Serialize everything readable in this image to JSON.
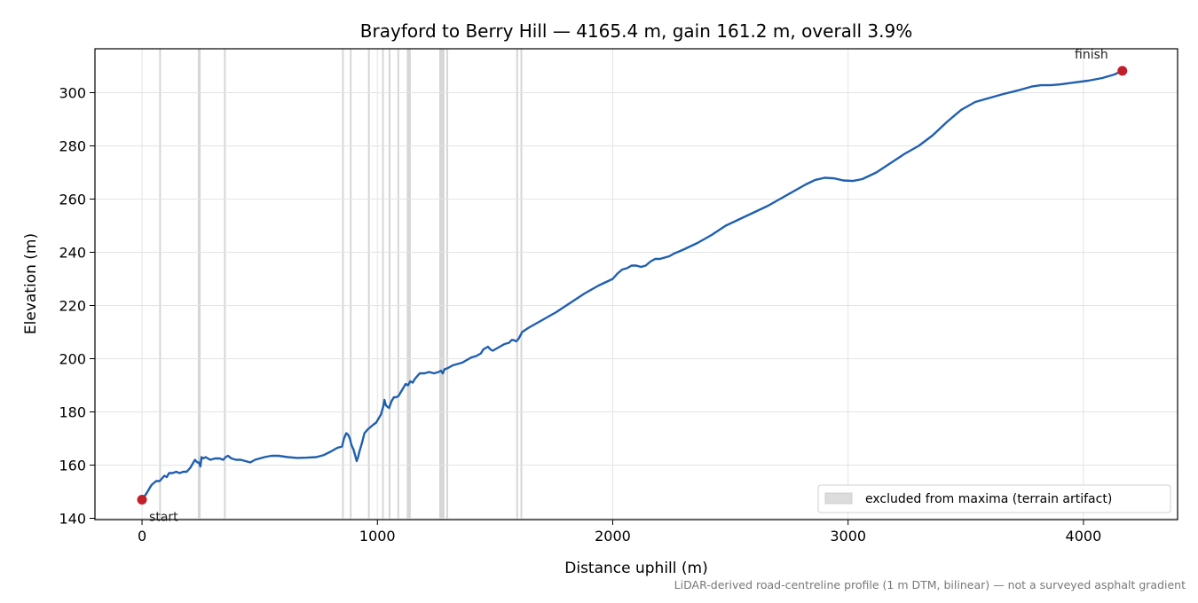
{
  "chart_data": {
    "type": "line",
    "title": "Brayford to Berry Hill — 4165.4 m, gain 161.2 m, overall 3.9%",
    "xlabel": "Distance uphill (m)",
    "ylabel": "Elevation (m)",
    "xlim": [
      -200,
      4400
    ],
    "ylim": [
      139.5,
      316.5
    ],
    "xticks": [
      0,
      1000,
      2000,
      3000,
      4000
    ],
    "yticks": [
      140,
      160,
      180,
      200,
      220,
      240,
      260,
      280,
      300
    ],
    "grid": true,
    "legend": {
      "placement": "lower-right",
      "entries": [
        "excluded from maxima (terrain artifact)"
      ]
    },
    "footnote": "LiDAR-derived road-centreline profile (1 m DTM, bilinear) — not a surveyed asphalt gradient",
    "series": [
      {
        "color": "#1f5fb0",
        "points": [
          [
            0,
            147.0
          ],
          [
            20,
            149.5
          ],
          [
            40,
            152.5
          ],
          [
            60,
            154.0
          ],
          [
            75,
            154.0
          ],
          [
            85,
            155.0
          ],
          [
            95,
            156.0
          ],
          [
            105,
            155.5
          ],
          [
            115,
            157.0
          ],
          [
            130,
            157.0
          ],
          [
            145,
            157.5
          ],
          [
            160,
            157.0
          ],
          [
            175,
            157.5
          ],
          [
            190,
            157.5
          ],
          [
            205,
            159.0
          ],
          [
            215,
            160.5
          ],
          [
            225,
            162.0
          ],
          [
            235,
            161.0
          ],
          [
            242,
            161.0
          ],
          [
            248,
            159.5
          ],
          [
            253,
            163.0
          ],
          [
            260,
            162.5
          ],
          [
            270,
            163.0
          ],
          [
            290,
            162.0
          ],
          [
            310,
            162.5
          ],
          [
            330,
            162.5
          ],
          [
            345,
            162.0
          ],
          [
            355,
            163.0
          ],
          [
            365,
            163.5
          ],
          [
            380,
            162.5
          ],
          [
            400,
            162.0
          ],
          [
            420,
            162.0
          ],
          [
            440,
            161.5
          ],
          [
            460,
            161.0
          ],
          [
            480,
            162.0
          ],
          [
            500,
            162.5
          ],
          [
            520,
            163.0
          ],
          [
            550,
            163.5
          ],
          [
            580,
            163.5
          ],
          [
            620,
            163.0
          ],
          [
            660,
            162.7
          ],
          [
            700,
            162.8
          ],
          [
            740,
            163.0
          ],
          [
            770,
            163.7
          ],
          [
            800,
            165.0
          ],
          [
            830,
            166.5
          ],
          [
            850,
            167.0
          ],
          [
            858,
            170.0
          ],
          [
            868,
            172.0
          ],
          [
            875,
            171.5
          ],
          [
            883,
            170.0
          ],
          [
            890,
            167.5
          ],
          [
            898,
            166.0
          ],
          [
            906,
            163.5
          ],
          [
            912,
            161.5
          ],
          [
            918,
            163.0
          ],
          [
            925,
            165.5
          ],
          [
            935,
            168.5
          ],
          [
            945,
            172.0
          ],
          [
            960,
            173.5
          ],
          [
            980,
            175.0
          ],
          [
            995,
            176.0
          ],
          [
            1005,
            177.5
          ],
          [
            1015,
            179.0
          ],
          [
            1020,
            180.5
          ],
          [
            1025,
            182.0
          ],
          [
            1030,
            184.5
          ],
          [
            1036,
            182.5
          ],
          [
            1042,
            182.0
          ],
          [
            1050,
            181.5
          ],
          [
            1060,
            184.0
          ],
          [
            1070,
            185.5
          ],
          [
            1080,
            185.5
          ],
          [
            1090,
            186.0
          ],
          [
            1100,
            187.5
          ],
          [
            1110,
            189.0
          ],
          [
            1120,
            190.5
          ],
          [
            1130,
            190.0
          ],
          [
            1140,
            191.5
          ],
          [
            1150,
            191.0
          ],
          [
            1160,
            192.5
          ],
          [
            1170,
            193.5
          ],
          [
            1180,
            194.5
          ],
          [
            1200,
            194.5
          ],
          [
            1220,
            195.0
          ],
          [
            1240,
            194.5
          ],
          [
            1260,
            195.0
          ],
          [
            1270,
            195.5
          ],
          [
            1278,
            194.5
          ],
          [
            1285,
            196.0
          ],
          [
            1300,
            196.5
          ],
          [
            1320,
            197.5
          ],
          [
            1340,
            198.0
          ],
          [
            1360,
            198.5
          ],
          [
            1380,
            199.5
          ],
          [
            1400,
            200.5
          ],
          [
            1420,
            201.0
          ],
          [
            1440,
            202.0
          ],
          [
            1450,
            203.5
          ],
          [
            1460,
            204.0
          ],
          [
            1470,
            204.5
          ],
          [
            1480,
            203.5
          ],
          [
            1490,
            203.0
          ],
          [
            1500,
            203.5
          ],
          [
            1520,
            204.5
          ],
          [
            1540,
            205.5
          ],
          [
            1560,
            206.0
          ],
          [
            1570,
            207.0
          ],
          [
            1580,
            207.0
          ],
          [
            1590,
            206.5
          ],
          [
            1600,
            207.5
          ],
          [
            1615,
            210.0
          ],
          [
            1640,
            211.5
          ],
          [
            1700,
            214.5
          ],
          [
            1760,
            217.5
          ],
          [
            1820,
            221.0
          ],
          [
            1880,
            224.5
          ],
          [
            1940,
            227.5
          ],
          [
            2000,
            230.0
          ],
          [
            2020,
            232.0
          ],
          [
            2040,
            233.5
          ],
          [
            2060,
            234.0
          ],
          [
            2080,
            235.0
          ],
          [
            2100,
            235.0
          ],
          [
            2120,
            234.5
          ],
          [
            2140,
            235.0
          ],
          [
            2160,
            236.5
          ],
          [
            2180,
            237.5
          ],
          [
            2200,
            237.5
          ],
          [
            2220,
            238.0
          ],
          [
            2240,
            238.5
          ],
          [
            2260,
            239.5
          ],
          [
            2300,
            241.0
          ],
          [
            2360,
            243.5
          ],
          [
            2420,
            246.5
          ],
          [
            2480,
            250.0
          ],
          [
            2540,
            252.5
          ],
          [
            2600,
            255.0
          ],
          [
            2660,
            257.5
          ],
          [
            2720,
            260.5
          ],
          [
            2780,
            263.5
          ],
          [
            2820,
            265.5
          ],
          [
            2860,
            267.2
          ],
          [
            2900,
            268.0
          ],
          [
            2940,
            267.8
          ],
          [
            2980,
            267.0
          ],
          [
            3020,
            266.8
          ],
          [
            3060,
            267.5
          ],
          [
            3120,
            270.0
          ],
          [
            3180,
            273.5
          ],
          [
            3240,
            277.0
          ],
          [
            3300,
            280.0
          ],
          [
            3360,
            284.0
          ],
          [
            3420,
            289.0
          ],
          [
            3480,
            293.5
          ],
          [
            3540,
            296.5
          ],
          [
            3600,
            298.0
          ],
          [
            3660,
            299.5
          ],
          [
            3720,
            300.8
          ],
          [
            3780,
            302.3
          ],
          [
            3820,
            302.8
          ],
          [
            3860,
            302.8
          ],
          [
            3900,
            303.1
          ],
          [
            3960,
            303.8
          ],
          [
            4020,
            304.5
          ],
          [
            4080,
            305.5
          ],
          [
            4130,
            306.8
          ],
          [
            4165.4,
            308.2
          ]
        ]
      }
    ],
    "excluded_bands": [
      [
        73,
        80
      ],
      [
        237,
        249
      ],
      [
        348,
        355
      ],
      [
        850,
        857
      ],
      [
        883,
        888
      ],
      [
        960,
        964
      ],
      [
        1020,
        1024
      ],
      [
        1048,
        1052
      ],
      [
        1085,
        1089
      ],
      [
        1125,
        1142
      ],
      [
        1263,
        1285
      ],
      [
        1293,
        1300
      ],
      [
        1590,
        1594
      ],
      [
        1608,
        1614
      ]
    ],
    "markers": [
      {
        "label": "start",
        "x": 0,
        "y": 147.0,
        "color": "#c0202a"
      },
      {
        "label": "finish",
        "x": 4165.4,
        "y": 308.2,
        "color": "#c0202a"
      }
    ]
  }
}
